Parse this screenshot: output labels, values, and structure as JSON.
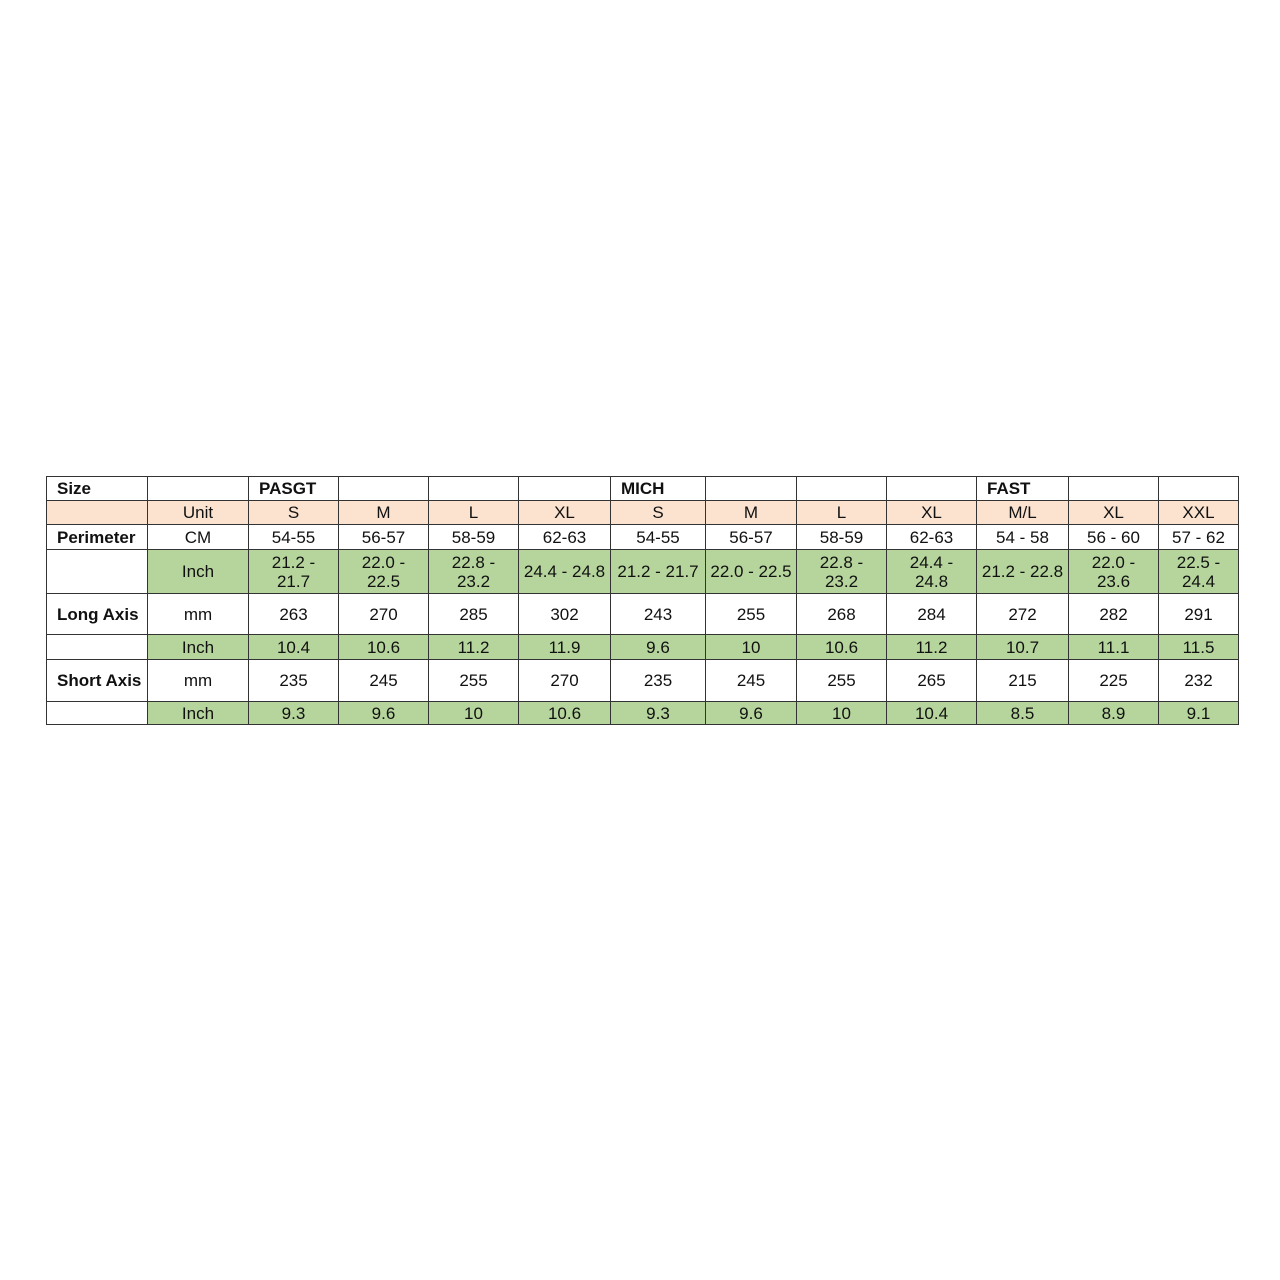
{
  "colors": {
    "header_row": "#fbe3d0",
    "inch_row": "#b6d59c"
  },
  "table": {
    "rows": [
      {
        "type": "group",
        "cells": [
          "Size",
          "",
          "PASGT",
          "",
          "",
          "",
          "MICH",
          "",
          "",
          "",
          "FAST",
          "",
          ""
        ]
      },
      {
        "type": "peach",
        "cells": [
          "",
          "Unit",
          "S",
          "M",
          "L",
          "XL",
          "S",
          "M",
          "L",
          "XL",
          "M/L",
          "XL",
          "XXL"
        ]
      },
      {
        "type": "plain",
        "cells": [
          "Perimeter",
          "CM",
          "54-55",
          "56-57",
          "58-59",
          "62-63",
          "54-55",
          "56-57",
          "58-59",
          "62-63",
          "54 - 58",
          "56 - 60",
          "57 - 62"
        ]
      },
      {
        "type": "green",
        "cells": [
          "",
          "Inch",
          "21.2 - 21.7",
          "22.0 - 22.5",
          "22.8 - 23.2",
          "24.4 - 24.8",
          "21.2 - 21.7",
          "22.0 - 22.5",
          "22.8 - 23.2",
          "24.4 - 24.8",
          "21.2 - 22.8",
          "22.0 - 23.6",
          "22.5 - 24.4"
        ]
      },
      {
        "type": "plain",
        "cells": [
          "Long Axis",
          "mm",
          "263",
          "270",
          "285",
          "302",
          "243",
          "255",
          "268",
          "284",
          "272",
          "282",
          "291"
        ]
      },
      {
        "type": "green",
        "cells": [
          "",
          "Inch",
          "10.4",
          "10.6",
          "11.2",
          "11.9",
          "9.6",
          "10",
          "10.6",
          "11.2",
          "10.7",
          "11.1",
          "11.5"
        ]
      },
      {
        "type": "plain",
        "cells": [
          "Short Axis",
          "mm",
          "235",
          "245",
          "255",
          "270",
          "235",
          "245",
          "255",
          "265",
          "215",
          "225",
          "232"
        ]
      },
      {
        "type": "green",
        "cells": [
          "",
          "Inch",
          "9.3",
          "9.6",
          "10",
          "10.6",
          "9.3",
          "9.6",
          "10",
          "10.4",
          "8.5",
          "8.9",
          "9.1"
        ]
      }
    ]
  }
}
